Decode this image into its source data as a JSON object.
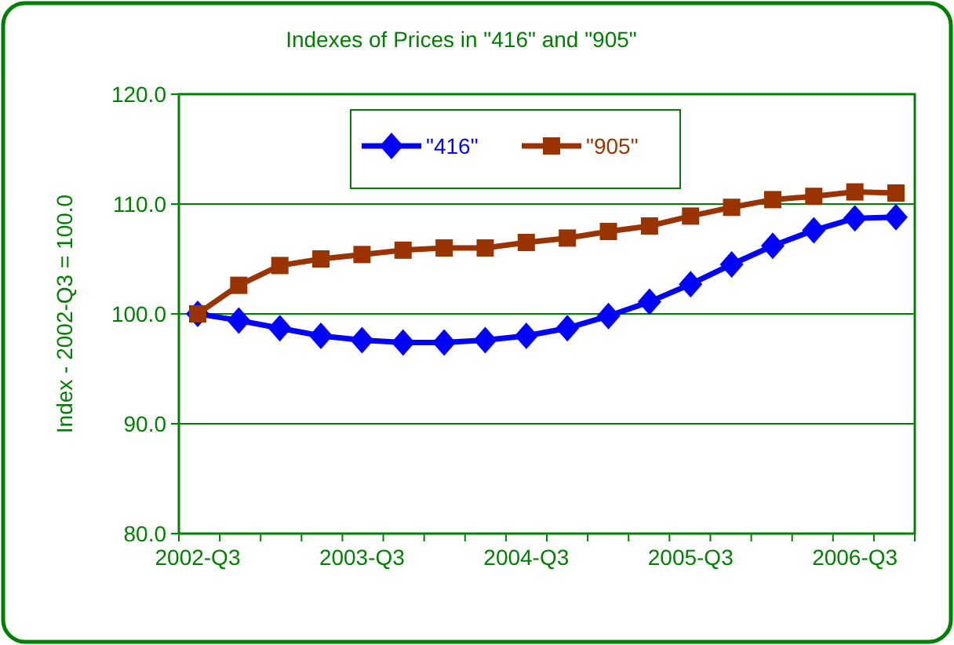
{
  "chart_data": {
    "type": "line",
    "title": "Indexes of Prices in \"416\" and \"905\"",
    "ylabel": "Index - 2002-Q3 = 100.0",
    "categories": [
      "2002-Q3",
      null,
      null,
      null,
      "2003-Q3",
      null,
      null,
      null,
      "2004-Q3",
      null,
      null,
      null,
      "2005-Q3",
      null,
      null,
      null,
      "2006-Q3",
      null
    ],
    "series": [
      {
        "name": "\"416\"",
        "color": "#0000ff",
        "marker": "diamond",
        "values": [
          100,
          99.4,
          98.7,
          98.0,
          97.6,
          97.4,
          97.4,
          97.6,
          98.0,
          98.7,
          99.8,
          101.1,
          102.7,
          104.5,
          106.2,
          107.6,
          108.7,
          108.8
        ]
      },
      {
        "name": "\"905\"",
        "color": "#993300",
        "marker": "square",
        "values": [
          100,
          102.6,
          104.4,
          105.0,
          105.4,
          105.8,
          106.0,
          106.0,
          106.5,
          106.9,
          107.5,
          108.0,
          108.9,
          109.7,
          110.4,
          110.7,
          111.1,
          111.0
        ]
      }
    ],
    "ylim": [
      80,
      120
    ],
    "yticks": [
      {
        "value": 80,
        "label": "80.0"
      },
      {
        "value": 90,
        "label": "90.0"
      },
      {
        "value": 100,
        "label": "100.0"
      },
      {
        "value": 110,
        "label": "110.0"
      },
      {
        "value": 120,
        "label": "120.0"
      }
    ],
    "grid": "y",
    "legend": "top"
  }
}
